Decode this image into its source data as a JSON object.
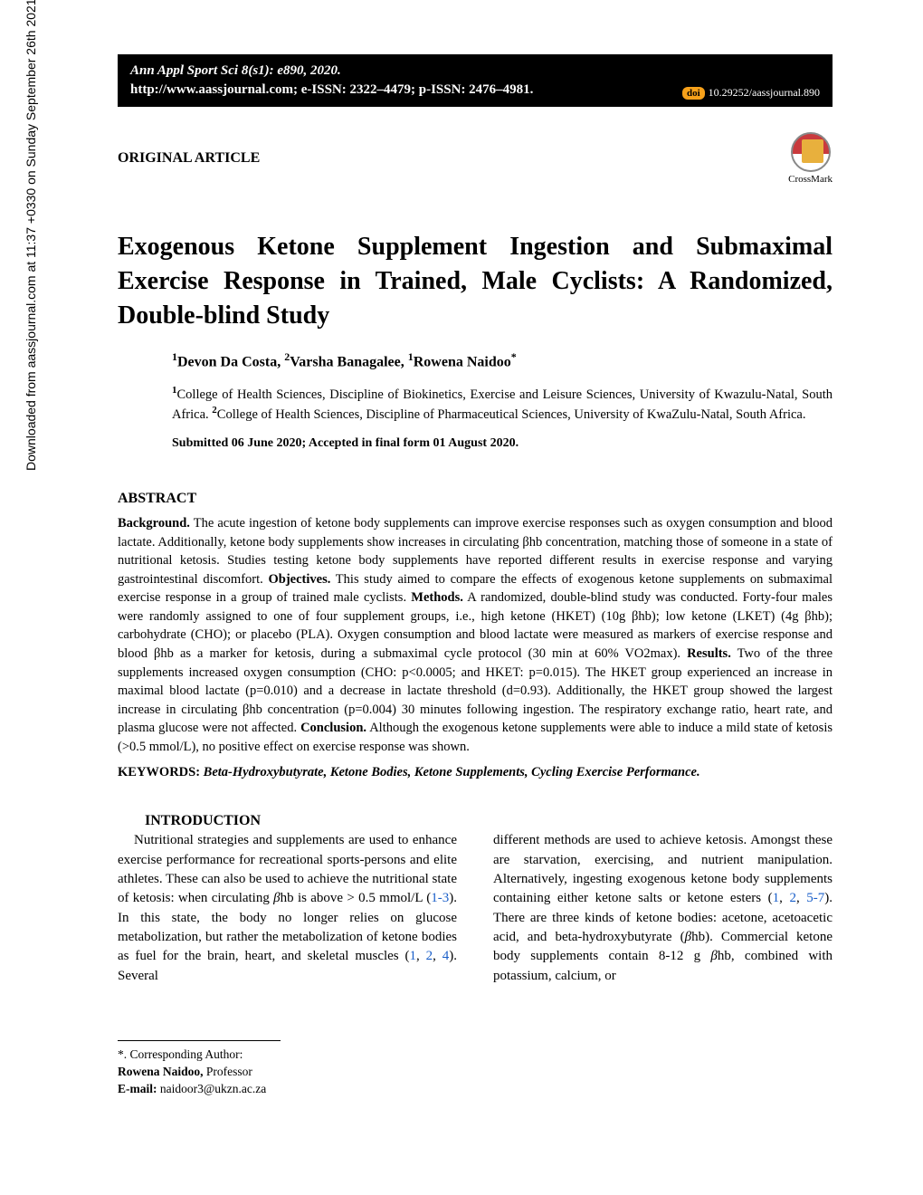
{
  "header": {
    "citation": "Ann Appl Sport Sci 8(s1): e890, 2020.",
    "url_issn": "http://www.aassjournal.com; e-ISSN: 2322–4479; p-ISSN: 2476–4981.",
    "doi_badge": "doi",
    "doi": "10.29252/aassjournal.890"
  },
  "article_type": "ORIGINAL ARTICLE",
  "crossmark": "CrossMark",
  "title": "Exogenous Ketone Supplement Ingestion and Submaximal Exercise Response in Trained, Male Cyclists: A Randomized, Double-blind Study",
  "authors": {
    "a1_sup": "1",
    "a1": "Devon Da Costa, ",
    "a2_sup": "2",
    "a2": "Varsha Banagalee, ",
    "a3_sup": "1",
    "a3": "Rowena Naidoo",
    "corr": "*"
  },
  "affiliations": {
    "sup1": "1",
    "aff1": "College of Health Sciences, Discipline of Biokinetics, Exercise and Leisure Sciences, University of Kwazulu-Natal, South Africa. ",
    "sup2": "2",
    "aff2": "College of Health Sciences, Discipline of Pharmaceutical Sciences, University of KwaZulu-Natal, South Africa."
  },
  "dates": "Submitted 06 June 2020; Accepted in final form 01 August 2020.",
  "abstract_heading": "ABSTRACT",
  "abstract": {
    "bg_label": "Background.",
    "bg": " The acute ingestion of ketone body supplements can improve exercise responses such as oxygen consumption and blood lactate. Additionally, ketone body supplements show increases in circulating βhb concentration, matching those of someone in a state of nutritional ketosis. Studies testing ketone body supplements have reported different results in exercise response and varying gastrointestinal discomfort. ",
    "obj_label": "Objectives.",
    "obj": " This study aimed to compare the effects of exogenous ketone supplements on submaximal exercise response in a group of trained male cyclists. ",
    "met_label": "Methods.",
    "met": " A randomized, double-blind study was conducted. Forty-four males were randomly assigned to one of four supplement groups, i.e., high ketone (HKET) (10g βhb); low ketone (LKET) (4g βhb); carbohydrate (CHO); or placebo (PLA). Oxygen consumption and blood lactate were measured as markers of exercise response and blood βhb as a marker for ketosis, during a submaximal cycle protocol (30 min at 60% VO2max). ",
    "res_label": "Results.",
    "res": " Two of the three supplements increased oxygen consumption (CHO: p<0.0005; and HKET: p=0.015). The HKET group experienced an increase in maximal blood lactate (p=0.010) and a decrease in lactate threshold (d=0.93). Additionally, the HKET group showed the largest increase in circulating βhb concentration (p=0.004) 30 minutes following ingestion. The respiratory exchange ratio, heart rate, and plasma glucose were not affected. ",
    "con_label": "Conclusion.",
    "con": " Although the exogenous ketone supplements were able to induce a mild state of ketosis (>0.5 mmol/L),  no positive effect on exercise response was shown."
  },
  "keywords_label": "KEYWORDS: ",
  "keywords": "Beta-Hydroxybutyrate, Ketone Bodies, Ketone Supplements, Cycling Exercise Performance.",
  "intro_heading": "INTRODUCTION",
  "intro": {
    "col1_a": "Nutritional strategies and supplements are used to enhance exercise performance for recreational sports-persons and elite athletes. These can also be used to achieve the nutritional state of ketosis: when circulating ",
    "col1_bhb": "β",
    "col1_b": "hb is above > 0.5 mmol/L (",
    "col1_ref1": "1-3",
    "col1_c": "). In this state, the body no longer relies on glucose metabolization, but rather the metabolization of ketone bodies as fuel for the brain, heart, and skeletal muscles (",
    "col1_ref2": "1",
    "col1_d": ", ",
    "col1_ref3": "2",
    "col1_e": ", ",
    "col1_ref4": "4",
    "col1_f": "). Several",
    "col2_a": "different methods are used to achieve ketosis. Amongst these are starvation, exercising, and nutrient manipulation. Alternatively, ingesting exogenous ketone body supplements containing either ketone salts or ketone esters (",
    "col2_ref1": "1",
    "col2_b": ", ",
    "col2_ref2": "2",
    "col2_c": ", ",
    "col2_ref3": "5-7",
    "col2_d": "). There are three kinds of ketone bodies: acetone, acetoacetic acid, and beta-hydroxybutyrate (",
    "col2_bhb": "β",
    "col2_e": "hb). Commercial ketone body supplements contain 8-12 g ",
    "col2_bhb2": "β",
    "col2_f": "hb, combined with potassium, calcium, or"
  },
  "footnote": {
    "label": "*. Corresponding Author:",
    "name": "Rowena Naidoo,",
    "role": " Professor",
    "email_label": "E-mail: ",
    "email": "naidoor3@ukzn.ac.za"
  },
  "sidebar": "Downloaded from aassjournal.com at 11:37 +0330 on Sunday September 26th 2021"
}
